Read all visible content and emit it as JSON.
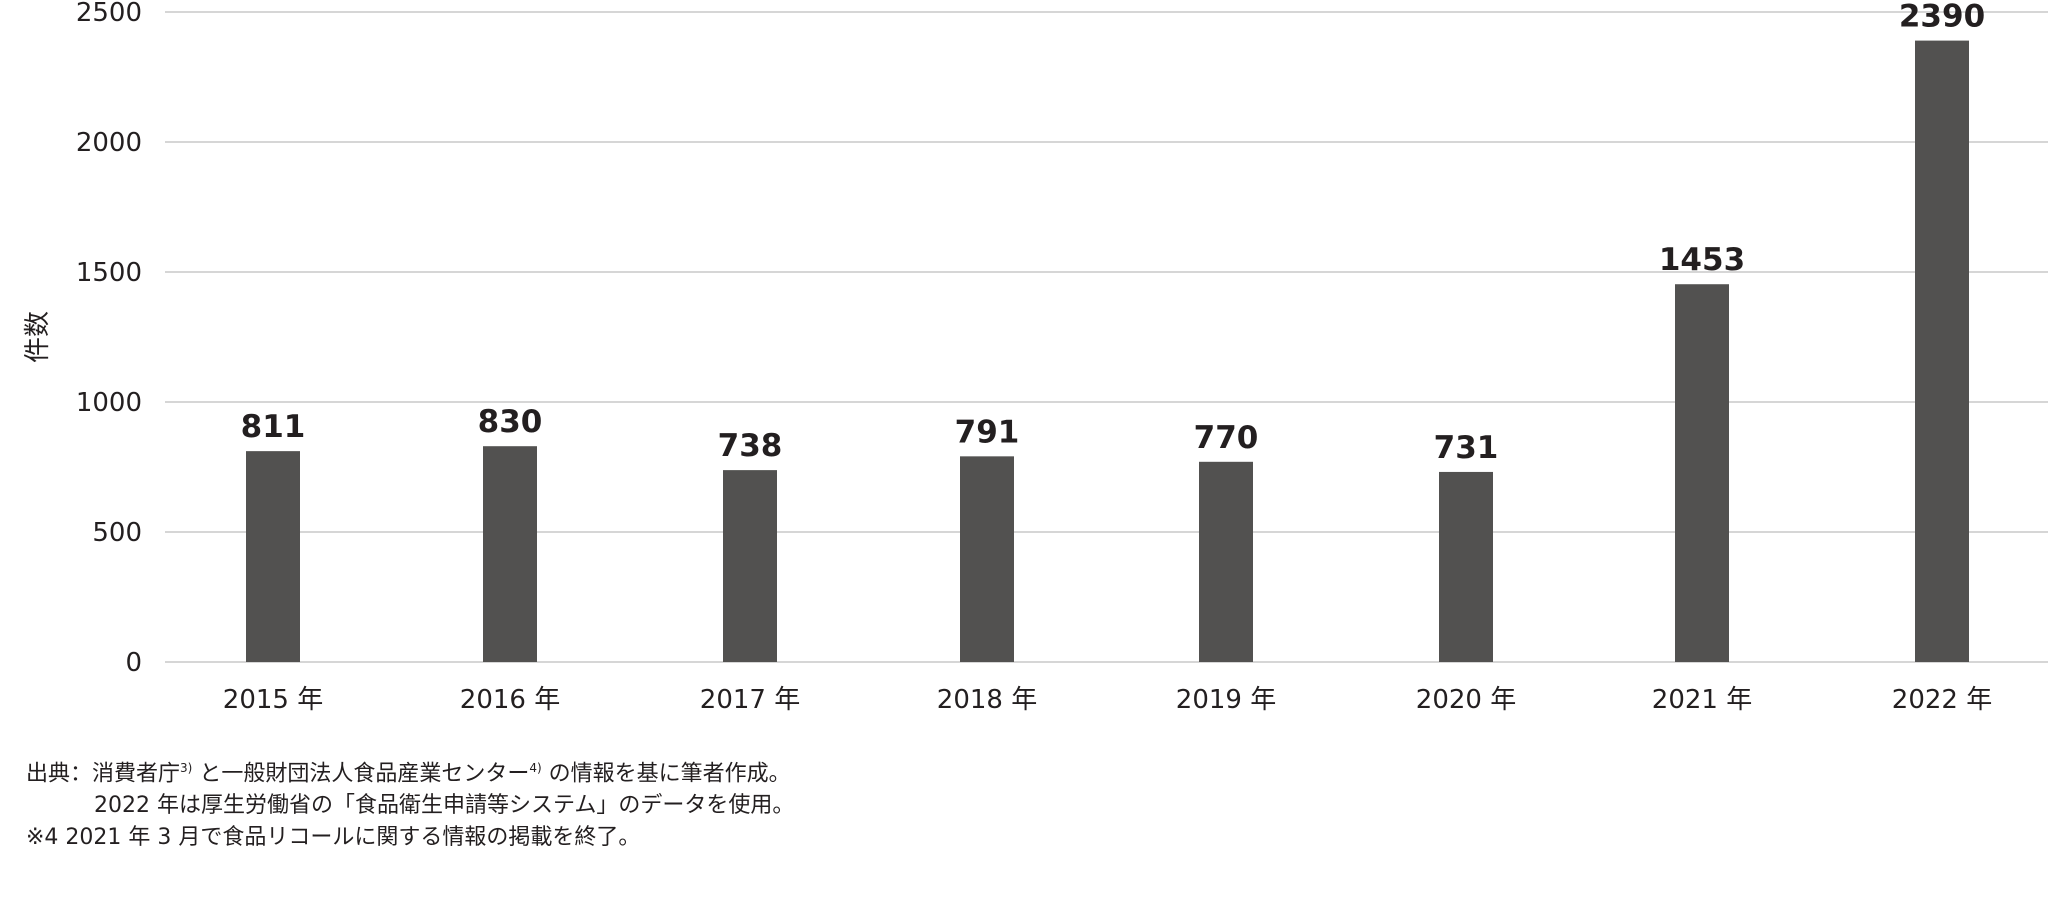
{
  "chart_data": {
    "type": "bar",
    "categories": [
      "2015 年",
      "2016 年",
      "2017 年",
      "2018 年",
      "2019 年",
      "2020 年",
      "2021 年",
      "2022 年"
    ],
    "values": [
      811,
      830,
      738,
      791,
      770,
      731,
      1453,
      2390
    ],
    "title": "",
    "xlabel": "",
    "ylabel": "件数",
    "ylim": [
      0,
      2500
    ],
    "yticks": [
      0,
      500,
      1000,
      1500,
      2000,
      2500
    ],
    "grid": true,
    "legend": "none",
    "bar_color": "#525150",
    "grid_color": "#c8c8c8"
  },
  "notes": {
    "line1_prefix": "出典：消費者庁",
    "line1_sup1": "3)",
    "line1_mid": " と一般財団法人食品産業センター",
    "line1_sup2": "4)",
    "line1_suffix": " の情報を基に筆者作成。",
    "line2": "2022 年は厚生労働省の「食品衛生申請等システム」のデータを使用。",
    "line3": "※4 2021 年 3 月で食品リコールに関する情報の掲載を終了。"
  }
}
